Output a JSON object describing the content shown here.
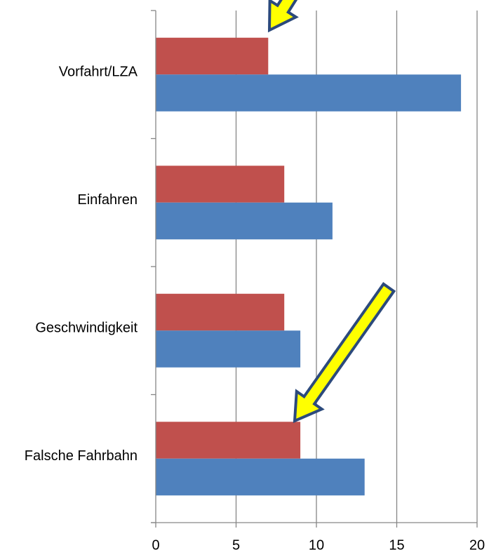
{
  "chart_data": {
    "type": "bar",
    "orientation": "horizontal",
    "categories": [
      "Vorfahrt/LZA",
      "Einfahren",
      "Geschwindigkeit",
      "Falsche Fahrbahn"
    ],
    "series": [
      {
        "color": "#c0504d",
        "values": [
          7,
          8,
          8,
          9
        ]
      },
      {
        "color": "#4f81bd",
        "values": [
          19,
          11,
          9,
          13
        ]
      }
    ],
    "xlim": [
      0,
      20
    ],
    "xticks": [
      0,
      5,
      10,
      15,
      20
    ],
    "grid": true
  }
}
